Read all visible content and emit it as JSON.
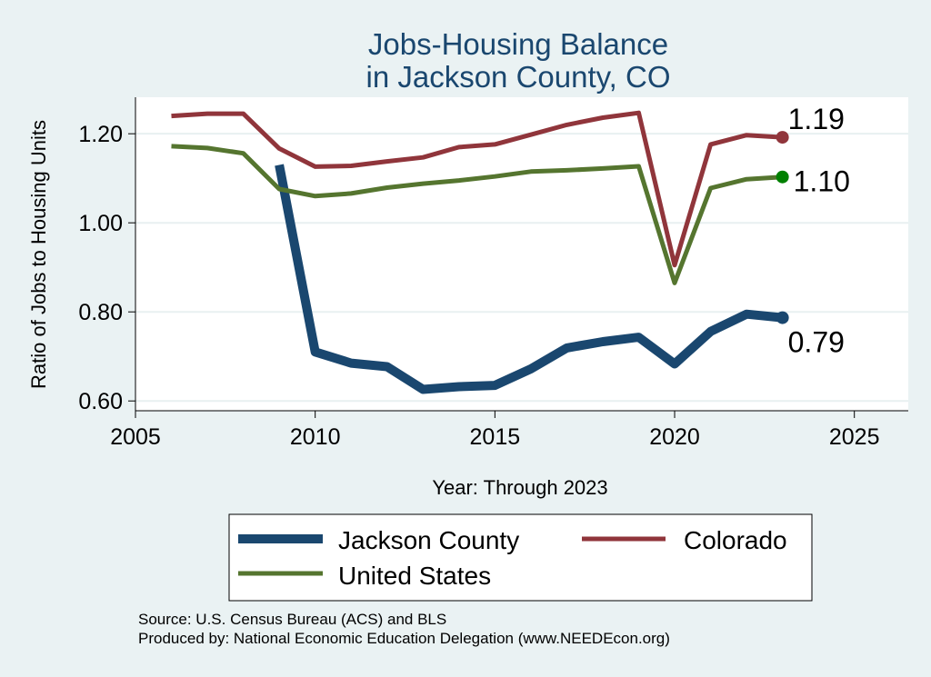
{
  "chart_data": {
    "type": "line",
    "title": [
      "Jobs-Housing Balance",
      "in Jackson County, CO"
    ],
    "xlabel": "Year: Through 2023",
    "ylabel": "Ratio of Jobs to Housing Units",
    "xlim": [
      2005,
      2026.5
    ],
    "ylim": [
      0.578,
      1.282
    ],
    "x_ticks": [
      {
        "value": 2005,
        "label": "2005"
      },
      {
        "value": 2010,
        "label": "2010"
      },
      {
        "value": 2015,
        "label": "2015"
      },
      {
        "value": 2020,
        "label": "2020"
      },
      {
        "value": 2025,
        "label": "2025"
      }
    ],
    "y_ticks": [
      {
        "value": 0.6,
        "label": "0.60"
      },
      {
        "value": 0.8,
        "label": "0.80"
      },
      {
        "value": 1.0,
        "label": "1.00"
      },
      {
        "value": 1.2,
        "label": "1.20"
      }
    ],
    "grid": true,
    "series": [
      {
        "name": "Jackson County",
        "color": "#1a476f",
        "x": [
          2009,
          2010,
          2011,
          2012,
          2013,
          2014,
          2015,
          2016,
          2017,
          2018,
          2019,
          2020,
          2021,
          2022,
          2023
        ],
        "values": [
          1.13,
          0.71,
          0.685,
          0.677,
          0.626,
          0.632,
          0.635,
          0.672,
          0.719,
          0.733,
          0.743,
          0.683,
          0.756,
          0.795,
          0.787
        ],
        "end_label": "0.79",
        "end_marker_color": "#1a476f"
      },
      {
        "name": "Colorado",
        "color": "#90353b",
        "x": [
          2006,
          2007,
          2008,
          2009,
          2010,
          2011,
          2012,
          2013,
          2014,
          2015,
          2016,
          2017,
          2018,
          2019,
          2020,
          2021,
          2022,
          2023
        ],
        "values": [
          1.24,
          1.245,
          1.245,
          1.167,
          1.126,
          1.128,
          1.138,
          1.147,
          1.17,
          1.176,
          1.198,
          1.22,
          1.236,
          1.247,
          0.905,
          1.176,
          1.197,
          1.192
        ],
        "end_label": "1.19",
        "end_marker_color": "#90353b"
      },
      {
        "name": "United States",
        "color": "#55752f",
        "x": [
          2006,
          2007,
          2008,
          2009,
          2010,
          2011,
          2012,
          2013,
          2014,
          2015,
          2016,
          2017,
          2018,
          2019,
          2020,
          2021,
          2022,
          2023
        ],
        "values": [
          1.172,
          1.168,
          1.156,
          1.076,
          1.06,
          1.066,
          1.079,
          1.088,
          1.095,
          1.104,
          1.115,
          1.118,
          1.122,
          1.127,
          0.865,
          1.078,
          1.098,
          1.103
        ],
        "end_label": "1.10",
        "end_marker_color": "#008000"
      }
    ],
    "legend": {
      "placement": "bottom",
      "entries": [
        "Jackson County",
        "Colorado",
        "United States"
      ]
    },
    "notes": [
      "Source: U.S. Census Bureau (ACS) and BLS",
      "Produced by: National Economic Education Delegation (www.NEEDEcon.org)"
    ]
  }
}
